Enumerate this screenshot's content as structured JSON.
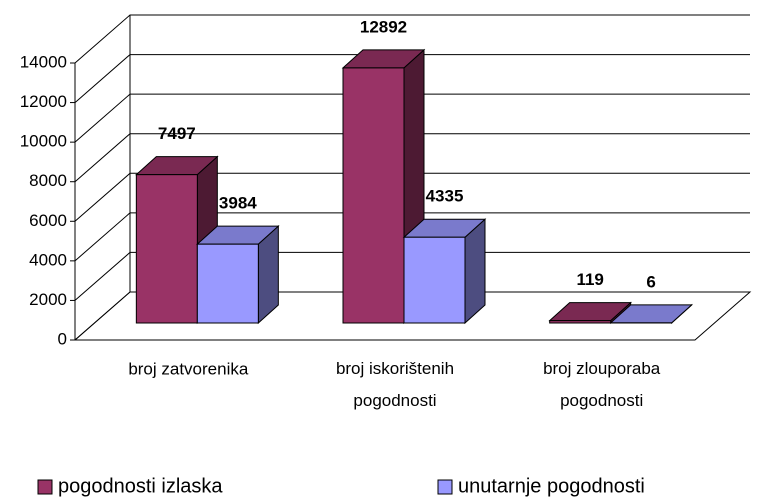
{
  "chart_data": {
    "type": "bar3d",
    "categories": [
      "broj zatvorenika",
      "broj iskorištenih pogodnosti",
      "broj zlouporaba pogodnosti"
    ],
    "series": [
      {
        "name": "pogodnosti izlaska",
        "color": "#993366",
        "values": [
          7497,
          12892,
          119
        ]
      },
      {
        "name": "unutarnje pogodnosti",
        "color": "#9999ff",
        "values": [
          3984,
          4335,
          6
        ]
      }
    ],
    "ylim": [
      0,
      14000
    ],
    "yticks": [
      0,
      2000,
      4000,
      6000,
      8000,
      10000,
      12000,
      14000
    ],
    "grid": true,
    "legend": "bottom"
  }
}
